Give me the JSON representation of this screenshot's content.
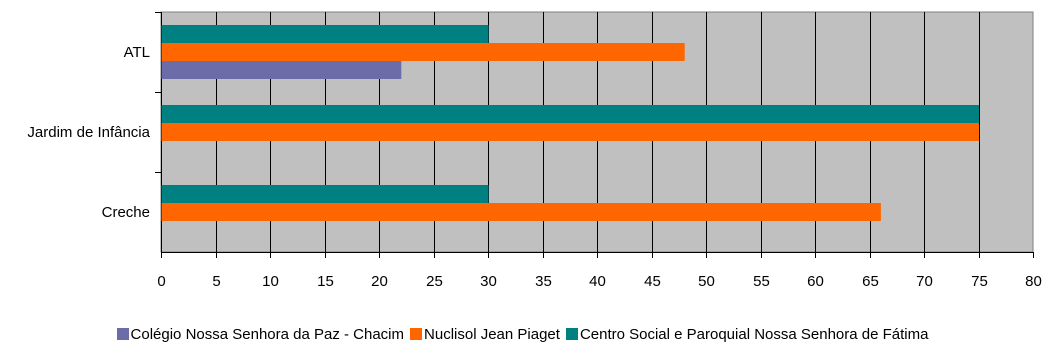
{
  "chart_data": {
    "type": "bar",
    "orientation": "horizontal",
    "categories": [
      "ATL",
      "Jardim de Infância",
      "Creche"
    ],
    "series": [
      {
        "name": "Colégio Nossa Senhora da Paz - Chacim",
        "color": "#6c6ca8",
        "values": [
          22,
          null,
          null
        ]
      },
      {
        "name": "Nuclisol Jean Piaget",
        "color": "#ff6600",
        "values": [
          48,
          75,
          66
        ]
      },
      {
        "name": "Centro Social e Paroquial Nossa Senhora de Fátima",
        "color": "#008080",
        "values": [
          30,
          75,
          30
        ]
      }
    ],
    "xlim": [
      0,
      80
    ],
    "x_ticks": [
      "0",
      "5",
      "10",
      "15",
      "20",
      "25",
      "30",
      "35",
      "40",
      "45",
      "50",
      "55",
      "60",
      "65",
      "70",
      "75",
      "80"
    ],
    "grid": true,
    "plot_background": "#c0c0c0",
    "legend_position": "bottom"
  }
}
